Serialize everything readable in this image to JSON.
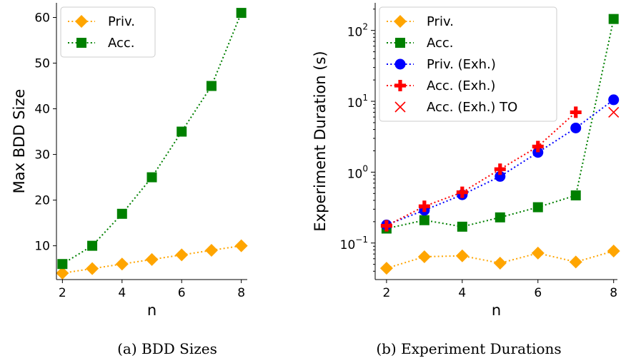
{
  "captions": {
    "left": "(a) BDD Sizes",
    "right": "(b) Experiment Durations"
  },
  "chart_data": [
    {
      "type": "line",
      "title": "",
      "xlabel": "n",
      "ylabel": "Max BDD Size",
      "xlim": [
        1.8,
        8.2
      ],
      "ylim": [
        2.6,
        63.2
      ],
      "yscale": "linear",
      "xticks": [
        2,
        4,
        6,
        8
      ],
      "yticks": [
        10,
        20,
        30,
        40,
        50,
        60
      ],
      "grid": false,
      "legend_position": "top-left",
      "series": [
        {
          "name": "Priv.",
          "color": "#ffa500",
          "marker": "diamond",
          "line": "dotted",
          "x": [
            2,
            3,
            4,
            5,
            6,
            7,
            8
          ],
          "y": [
            4,
            5,
            6,
            7,
            8,
            9,
            10
          ]
        },
        {
          "name": "Acc.",
          "color": "#008000",
          "marker": "square",
          "line": "dotted",
          "x": [
            2,
            3,
            4,
            5,
            6,
            7,
            8
          ],
          "y": [
            6,
            10,
            17,
            25,
            35,
            45,
            61
          ]
        }
      ]
    },
    {
      "type": "line",
      "title": "",
      "xlabel": "n",
      "ylabel": "Experiment Duration (s)",
      "xlim": [
        1.7,
        8.1
      ],
      "ylim": [
        0.0305,
        245
      ],
      "yscale": "log",
      "xticks": [
        2,
        4,
        6,
        8
      ],
      "yticks": [
        {
          "value": 0.1,
          "base": "10",
          "exp": "−1"
        },
        {
          "value": 1,
          "base": "10",
          "exp": "0"
        },
        {
          "value": 10,
          "base": "10",
          "exp": "1"
        },
        {
          "value": 100,
          "base": "10",
          "exp": "2"
        }
      ],
      "grid": false,
      "legend_position": "top-left",
      "series": [
        {
          "name": "Priv.",
          "color": "#ffa500",
          "marker": "diamond",
          "line": "dotted",
          "x": [
            2,
            3,
            4,
            5,
            6,
            7,
            8
          ],
          "y": [
            0.044,
            0.064,
            0.066,
            0.052,
            0.072,
            0.054,
            0.077
          ]
        },
        {
          "name": "Acc.",
          "color": "#008000",
          "marker": "square",
          "line": "dotted",
          "x": [
            2,
            3,
            4,
            5,
            6,
            7,
            8
          ],
          "y": [
            0.16,
            0.21,
            0.17,
            0.23,
            0.32,
            0.47,
            145
          ]
        },
        {
          "name": "Priv. (Exh.)",
          "color": "#0000ff",
          "marker": "circle",
          "line": "dotted",
          "x": [
            2,
            3,
            4,
            5,
            6,
            7,
            8
          ],
          "y": [
            0.18,
            0.29,
            0.48,
            0.87,
            1.9,
            4.2,
            10.5
          ]
        },
        {
          "name": "Acc. (Exh.)",
          "color": "#ff0000",
          "marker": "plus",
          "line": "dotted",
          "x": [
            2,
            3,
            4,
            5,
            6,
            7
          ],
          "y": [
            0.175,
            0.33,
            0.52,
            1.1,
            2.3,
            7.0
          ]
        },
        {
          "name": "Acc. (Exh.) TO",
          "color": "#ff0000",
          "marker": "x",
          "line": "none",
          "x": [
            8
          ],
          "y": [
            7.0
          ]
        }
      ]
    }
  ]
}
